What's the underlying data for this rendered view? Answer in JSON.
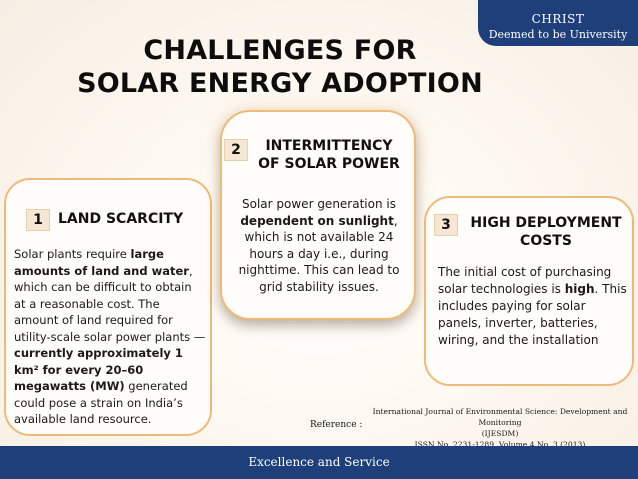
{
  "brand": {
    "name": "CHRIST",
    "tagline": "Deemed to be University"
  },
  "title": {
    "line1": "CHALLENGES FOR",
    "line2": "SOLAR ENERGY ADOPTION"
  },
  "cards": [
    {
      "number": "1",
      "heading": "LAND SCARCITY",
      "body": [
        {
          "t": "Solar plants require "
        },
        {
          "t": "large amounts of land and water",
          "b": true
        },
        {
          "t": ", which can be difficult to obtain at a reasonable cost. The amount of land required for utility-scale solar power plants — "
        },
        {
          "t": "currently approximately 1 km² for every 20–60 megawatts (MW)",
          "b": true
        },
        {
          "t": " generated could pose a strain on India’s available land resource."
        }
      ]
    },
    {
      "number": "2",
      "heading": "INTERMITTENCY OF SOLAR POWER",
      "body": [
        {
          "t": "Solar power generation is "
        },
        {
          "t": "dependent on sunlight",
          "b": true
        },
        {
          "t": ", which is not available 24 hours a day i.e., during nighttime. This can lead to grid stability issues."
        }
      ]
    },
    {
      "number": "3",
      "heading": "HIGH DEPLOYMENT COSTS",
      "body": [
        {
          "t": "The initial cost of purchasing solar technologies is "
        },
        {
          "t": "high",
          "b": true
        },
        {
          "t": ". This includes paying for solar panels, inverter, batteries, wiring, and the installation"
        }
      ]
    }
  ],
  "reference": {
    "label": "Reference :",
    "journal": "International Journal of Environmental Science: Development and Monitoring",
    "abbrev": "(IJESDM)",
    "issn": "ISSN No. 2231-1289, Volume 4 No. 3 (2013)"
  },
  "footer": {
    "text": "Excellence and Service"
  },
  "colors": {
    "brand_blue": "#1e3f7a",
    "card_border": "#efb978",
    "number_bg": "#f6e6d4"
  }
}
